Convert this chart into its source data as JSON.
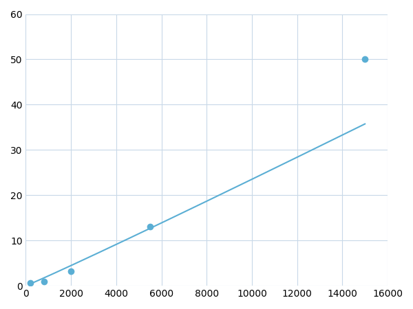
{
  "marker_x": [
    200,
    800,
    2000,
    5500,
    15000
  ],
  "marker_y": [
    0.7,
    1.0,
    3.2,
    13.0,
    50.0
  ],
  "line_color": "#5aaed4",
  "marker_color": "#5aaed4",
  "marker_size": 7,
  "linewidth": 1.5,
  "xlim": [
    0,
    16000
  ],
  "ylim": [
    0,
    60
  ],
  "xticks": [
    0,
    2000,
    4000,
    6000,
    8000,
    10000,
    12000,
    14000,
    16000
  ],
  "yticks": [
    0,
    10,
    20,
    30,
    40,
    50,
    60
  ],
  "grid_color": "#c8d8e8",
  "background_color": "#ffffff",
  "figsize": [
    6.0,
    4.5
  ],
  "dpi": 100
}
